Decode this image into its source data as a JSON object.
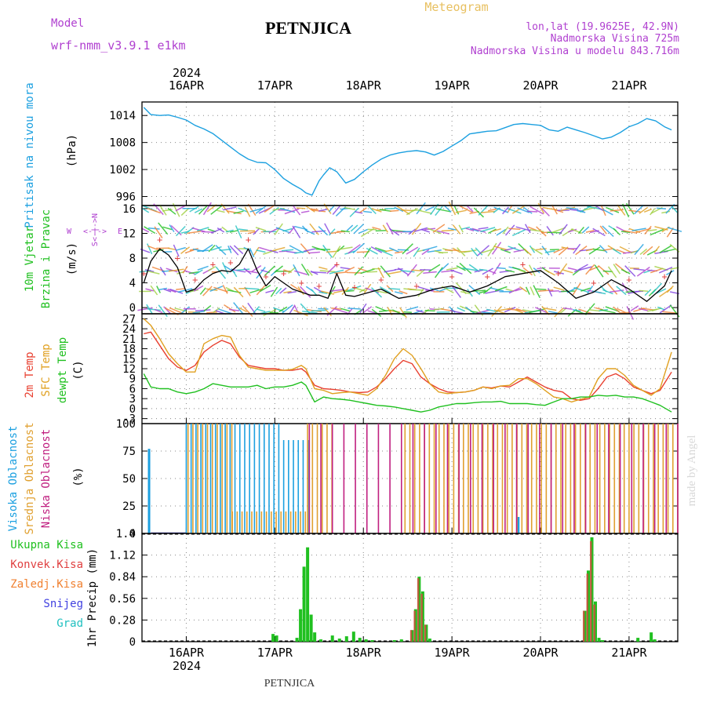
{
  "header": {
    "model_label": "Model",
    "model_name": "wrf-nmm_v3.9.1  e1km",
    "title": "PETNJICA",
    "chart_kind": "Meteogram",
    "lonlat": "lon,lat (19.9625E, 42.9N)",
    "elevation": "Nadmorska Visina 725m",
    "model_elevation": "Nadmorska Visina u modelu 843.716m",
    "watermark": "made by Angel",
    "footer_title": "PETNJICA",
    "colors": {
      "model": "#b040d0",
      "title": "#000000",
      "chart_kind": "#e8c060",
      "location_info": "#b040d0",
      "watermark": "#d8d8d8"
    }
  },
  "time_axis": {
    "year": "2024",
    "day_labels": [
      "16APR",
      "17APR",
      "18APR",
      "19APR",
      "20APR",
      "21APR"
    ],
    "time_units": "days from 16APR 00Z; data start ≈ 15APR 12Z, end ≈ 21APR 12Z",
    "x_range_days": [
      -0.5,
      5.55
    ]
  },
  "legends": {
    "pressure": "Pritisak na nivou mora",
    "pressure_unit": "(hPa)",
    "wind_a": "10m Vjetar",
    "wind_b": "Brzina i Pravac",
    "wind_unit": "(m/s)",
    "wind_rose": [
      "W",
      "<-|->",
      "E",
      "S<-|->N"
    ],
    "temp_2m": "2m Temp",
    "temp_sfc": "SFC Temp",
    "temp_dewpt": "dewpt Temp",
    "temp_unit": "(C)",
    "cloud_high": "Visoka Oblacnost",
    "cloud_mid": "Srednja Oblacnost",
    "cloud_low": "Niska Oblacnost",
    "cloud_unit": "(%)",
    "precip_total": "Ukupna Kisa",
    "precip_conv": "Konvek.Kisa",
    "precip_frozen": "Zaledj.Kisa",
    "precip_snow": "Snijeg",
    "precip_hail": "Grad",
    "precip_unit": "1hr Precip (mm)"
  },
  "colors": {
    "pressure": "#1ca0e0",
    "wind_speed": "#000000",
    "wind_gust_marker": "#e04040",
    "temp_2m": "#e84030",
    "temp_sfc": "#e0a020",
    "dewpoint": "#20c020",
    "cloud_high": "#1ca0e0",
    "cloud_mid": "#e0a030",
    "cloud_low": "#c02080",
    "precip_total": "#20c020",
    "precip_conv": "#e04040",
    "precip_frozen": "#f08030",
    "precip_snow": "#4040e0",
    "precip_hail": "#20c0c0"
  },
  "chart_data": [
    {
      "type": "line",
      "panel": "pressure",
      "ylim": [
        994,
        1017
      ],
      "yticks": [
        996,
        1002,
        1008,
        1014
      ],
      "grid": true,
      "series": [
        {
          "x": [
            -0.48,
            -0.4,
            -0.3,
            -0.2,
            -0.1,
            0.0,
            0.1,
            0.2,
            0.3,
            0.4,
            0.5,
            0.6,
            0.7,
            0.8,
            0.9,
            1.0,
            1.1,
            1.2,
            1.3,
            1.35,
            1.42,
            1.5,
            1.55,
            1.62,
            1.7,
            1.8,
            1.9,
            2.0,
            2.1,
            2.2,
            2.3,
            2.4,
            2.5,
            2.6,
            2.7,
            2.8,
            2.9,
            3.0,
            3.1,
            3.2,
            3.3,
            3.4,
            3.5,
            3.6,
            3.7,
            3.8,
            3.9,
            4.0,
            4.1,
            4.2,
            4.3,
            4.4,
            4.5,
            4.6,
            4.7,
            4.8,
            4.9,
            5.0,
            5.1,
            5.2,
            5.3,
            5.4,
            5.48
          ],
          "y": [
            1015.8,
            1014.2,
            1014.0,
            1014.1,
            1013.6,
            1013.0,
            1011.8,
            1011.0,
            1010.0,
            1008.5,
            1007.0,
            1005.5,
            1004.3,
            1003.6,
            1003.5,
            1002.0,
            1000.0,
            998.7,
            997.6,
            996.8,
            996.3,
            999.5,
            1000.8,
            1002.4,
            1001.5,
            999.0,
            999.8,
            1001.5,
            1003.0,
            1004.3,
            1005.2,
            1005.7,
            1006.0,
            1006.2,
            1005.9,
            1005.2,
            1006.0,
            1007.2,
            1008.4,
            1009.9,
            1010.2,
            1010.5,
            1010.6,
            1011.3,
            1012.0,
            1012.2,
            1012.0,
            1011.8,
            1010.8,
            1010.5,
            1011.4,
            1010.8,
            1010.2,
            1009.5,
            1008.8,
            1009.2,
            1010.2,
            1011.5,
            1012.2,
            1013.3,
            1012.8,
            1011.5,
            1010.8
          ]
        }
      ]
    },
    {
      "type": "line",
      "panel": "wind",
      "ylim": [
        -1,
        16.5
      ],
      "yticks": [
        0,
        4,
        8,
        12,
        16
      ],
      "grid": true,
      "series": [
        {
          "x": [
            -0.48,
            -0.4,
            -0.3,
            -0.2,
            -0.1,
            0.0,
            0.1,
            0.2,
            0.3,
            0.4,
            0.5,
            0.6,
            0.7,
            0.8,
            0.9,
            1.0,
            1.1,
            1.2,
            1.3,
            1.4,
            1.5,
            1.6,
            1.7,
            1.8,
            1.9,
            2.0,
            2.2,
            2.4,
            2.6,
            2.8,
            3.0,
            3.2,
            3.4,
            3.6,
            3.8,
            4.0,
            4.2,
            4.4,
            4.6,
            4.8,
            5.0,
            5.2,
            5.4,
            5.48
          ],
          "y": [
            4.0,
            7.5,
            9.5,
            8.5,
            6.5,
            2.5,
            3.0,
            4.5,
            5.5,
            6.0,
            5.8,
            7.0,
            9.5,
            6.0,
            3.5,
            5.0,
            4.0,
            3.0,
            2.5,
            2.0,
            2.0,
            1.5,
            5.5,
            2.0,
            1.8,
            2.2,
            3.0,
            1.5,
            2.0,
            3.0,
            3.5,
            2.5,
            3.5,
            5.0,
            5.5,
            6.0,
            4.0,
            1.5,
            2.5,
            4.5,
            3.0,
            1.0,
            3.5,
            6.0
          ]
        }
      ]
    },
    {
      "type": "line",
      "panel": "temperature",
      "ylim": [
        -4.5,
        28.5
      ],
      "yticks": [
        -3,
        0,
        3,
        6,
        9,
        12,
        15,
        18,
        21,
        24,
        27
      ],
      "grid": true,
      "series": [
        {
          "x": [
            -0.48,
            -0.4,
            -0.3,
            -0.2,
            -0.1,
            0.0,
            0.1,
            0.2,
            0.3,
            0.4,
            0.5,
            0.6,
            0.7,
            0.8,
            0.9,
            1.0,
            1.1,
            1.2,
            1.3,
            1.35,
            1.45,
            1.55,
            1.65,
            1.75,
            1.85,
            1.95,
            2.05,
            2.15,
            2.25,
            2.35,
            2.45,
            2.55,
            2.65,
            2.75,
            2.85,
            2.95,
            3.05,
            3.15,
            3.25,
            3.35,
            3.45,
            3.55,
            3.65,
            3.75,
            3.85,
            3.95,
            4.05,
            4.15,
            4.25,
            4.35,
            4.45,
            4.55,
            4.65,
            4.75,
            4.85,
            4.95,
            5.05,
            5.15,
            5.25,
            5.35,
            5.48
          ],
          "y": [
            22.5,
            23.0,
            19.0,
            15.0,
            12.5,
            11.5,
            13.0,
            17.0,
            19.0,
            20.5,
            19.5,
            15.5,
            13.0,
            12.5,
            12.0,
            12.0,
            11.5,
            11.5,
            12.0,
            11.0,
            7.0,
            6.0,
            5.8,
            5.5,
            5.0,
            4.8,
            5.0,
            6.5,
            9.0,
            12.0,
            14.5,
            13.5,
            9.5,
            7.5,
            6.0,
            5.0,
            4.8,
            5.0,
            5.5,
            6.5,
            6.2,
            6.8,
            6.5,
            8.0,
            9.5,
            8.0,
            6.5,
            5.5,
            5.0,
            3.0,
            2.5,
            3.0,
            6.0,
            9.5,
            10.5,
            9.0,
            6.5,
            5.5,
            4.5,
            5.5,
            11.0
          ]
        },
        {
          "x": [
            -0.48,
            -0.4,
            -0.3,
            -0.2,
            -0.1,
            0.0,
            0.1,
            0.2,
            0.3,
            0.4,
            0.5,
            0.6,
            0.7,
            0.8,
            0.9,
            1.0,
            1.1,
            1.2,
            1.3,
            1.35,
            1.45,
            1.55,
            1.65,
            1.75,
            1.85,
            1.95,
            2.05,
            2.15,
            2.25,
            2.35,
            2.45,
            2.55,
            2.65,
            2.75,
            2.85,
            2.95,
            3.05,
            3.15,
            3.25,
            3.35,
            3.45,
            3.55,
            3.65,
            3.75,
            3.85,
            3.95,
            4.05,
            4.15,
            4.25,
            4.35,
            4.45,
            4.55,
            4.65,
            4.75,
            4.85,
            4.95,
            5.05,
            5.15,
            5.25,
            5.35,
            5.48
          ],
          "y": [
            27.0,
            25.0,
            21.0,
            16.5,
            13.5,
            11.0,
            11.0,
            19.5,
            21.0,
            22.0,
            21.5,
            16.0,
            12.5,
            12.0,
            11.5,
            11.5,
            11.5,
            11.8,
            13.0,
            12.0,
            6.0,
            5.5,
            4.5,
            4.8,
            5.0,
            4.5,
            4.0,
            6.0,
            10.0,
            15.0,
            18.0,
            16.0,
            12.0,
            7.5,
            5.0,
            4.5,
            4.8,
            5.0,
            5.5,
            6.5,
            6.0,
            6.8,
            7.0,
            9.0,
            9.0,
            7.5,
            5.5,
            3.5,
            3.0,
            2.0,
            2.8,
            3.5,
            9.0,
            12.0,
            12.0,
            10.0,
            7.0,
            5.5,
            4.0,
            6.0,
            17.0
          ]
        },
        {
          "x": [
            -0.48,
            -0.4,
            -0.3,
            -0.2,
            -0.1,
            0.0,
            0.1,
            0.2,
            0.3,
            0.4,
            0.5,
            0.6,
            0.7,
            0.8,
            0.9,
            1.0,
            1.1,
            1.2,
            1.3,
            1.35,
            1.45,
            1.55,
            1.65,
            1.75,
            1.85,
            1.95,
            2.05,
            2.15,
            2.25,
            2.35,
            2.45,
            2.55,
            2.65,
            2.75,
            2.85,
            2.95,
            3.05,
            3.15,
            3.25,
            3.35,
            3.45,
            3.55,
            3.65,
            3.75,
            3.85,
            3.95,
            4.05,
            4.15,
            4.25,
            4.35,
            4.45,
            4.55,
            4.65,
            4.75,
            4.85,
            4.95,
            5.05,
            5.15,
            5.25,
            5.35,
            5.48
          ],
          "y": [
            10.5,
            6.5,
            6.0,
            6.0,
            5.0,
            4.5,
            5.0,
            6.0,
            7.5,
            7.0,
            6.5,
            6.5,
            6.5,
            7.0,
            6.0,
            6.5,
            6.5,
            7.0,
            8.0,
            7.0,
            2.0,
            3.5,
            3.0,
            2.8,
            2.5,
            2.0,
            1.5,
            1.0,
            0.8,
            0.5,
            0.0,
            -0.5,
            -1.0,
            -0.5,
            0.5,
            1.0,
            1.5,
            1.5,
            1.8,
            2.0,
            2.0,
            2.2,
            1.5,
            1.5,
            1.5,
            1.2,
            1.0,
            2.0,
            3.0,
            3.0,
            3.5,
            3.5,
            4.0,
            3.8,
            4.0,
            3.5,
            3.5,
            3.0,
            2.0,
            1.0,
            -1.0
          ]
        }
      ]
    },
    {
      "type": "bar",
      "panel": "cloud_cover",
      "ylim": [
        0,
        100
      ],
      "yticks": [
        0,
        25,
        50,
        75,
        100
      ],
      "grid": true,
      "series": [
        {
          "segments": [
            [
              -0.42,
              -0.42,
              77
            ],
            [
              0.0,
              1.1,
              100
            ],
            [
              1.1,
              1.4,
              85
            ],
            [
              3.75,
              3.75,
              15
            ]
          ]
        },
        {
          "segments": [
            [
              0.0,
              0.5,
              100
            ],
            [
              0.5,
              1.35,
              20
            ],
            [
              1.35,
              1.65,
              100
            ],
            [
              2.45,
              5.55,
              100
            ]
          ]
        },
        {
          "segments": [
            [
              1.35,
              5.55,
              100
            ]
          ]
        }
      ]
    },
    {
      "type": "bar",
      "panel": "precipitation",
      "ylim": [
        0,
        1.4
      ],
      "yticks": [
        0,
        0.28,
        0.56,
        0.84,
        1.12,
        1.4
      ],
      "grid": true,
      "series": [
        {
          "x": [
            0.98,
            1.02,
            1.25,
            1.29,
            1.33,
            1.37,
            1.41,
            1.45,
            1.52,
            1.65,
            1.73,
            1.81,
            1.89,
            1.96,
            2.03,
            2.1,
            2.35,
            2.43,
            2.55,
            2.59,
            2.63,
            2.67,
            2.71,
            2.75,
            4.5,
            4.54,
            4.58,
            4.62,
            4.66,
            4.7,
            5.1,
            5.25,
            5.29
          ],
          "y": [
            0.1,
            0.08,
            0.05,
            0.42,
            0.97,
            1.22,
            0.35,
            0.12,
            0.03,
            0.08,
            0.04,
            0.07,
            0.13,
            0.05,
            0.03,
            0.02,
            0.02,
            0.03,
            0.15,
            0.42,
            0.84,
            0.65,
            0.22,
            0.04,
            0.4,
            0.92,
            1.35,
            0.52,
            0.05,
            0.02,
            0.05,
            0.12,
            0.03
          ]
        },
        {
          "x": [
            2.55,
            2.59,
            2.63,
            2.67,
            2.71,
            4.5,
            4.54,
            4.58,
            4.62
          ],
          "y": [
            0.15,
            0.4,
            0.82,
            0.62,
            0.22,
            0.4,
            0.88,
            1.3,
            0.48
          ]
        }
      ]
    }
  ]
}
